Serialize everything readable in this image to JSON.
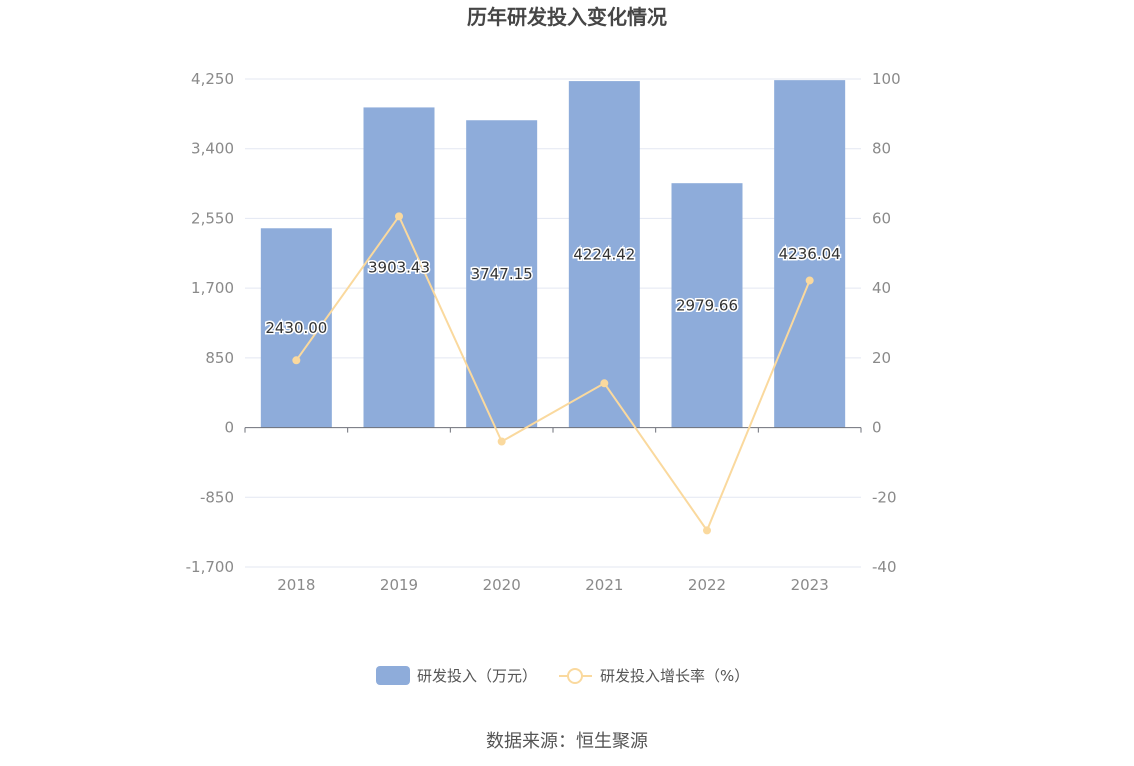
{
  "chart_data": {
    "type": "bar",
    "title": "历年研发投入变化情况",
    "categories": [
      "2018",
      "2019",
      "2020",
      "2021",
      "2022",
      "2023"
    ],
    "series": [
      {
        "name": "研发投入（万元）",
        "type": "bar",
        "axis": "left",
        "color": "#8eacda",
        "values": [
          2430.0,
          3903.43,
          3747.15,
          4224.42,
          2979.66,
          4236.04
        ],
        "labels": [
          "2430.00",
          "3903.43",
          "3747.15",
          "4224.42",
          "2979.66",
          "4236.04"
        ]
      },
      {
        "name": "研发投入增长率（%）",
        "type": "line",
        "axis": "right",
        "color": "#fad99e",
        "values": [
          19.3,
          60.6,
          -4.0,
          12.7,
          -29.5,
          42.2
        ]
      }
    ],
    "y_left": {
      "min": -1700,
      "max": 4250,
      "ticks": [
        4250,
        3400,
        2550,
        1700,
        850,
        0,
        -850,
        -1700
      ],
      "tick_labels": [
        "4,250",
        "3,400",
        "2,550",
        "1,700",
        "850",
        "0",
        "-850",
        "-1,700"
      ]
    },
    "y_right": {
      "min": -40,
      "max": 100,
      "ticks": [
        100,
        80,
        60,
        40,
        20,
        0,
        -20,
        -40
      ],
      "tick_labels": [
        "100",
        "80",
        "60",
        "40",
        "20",
        "0",
        "-20",
        "-40"
      ]
    },
    "grid": true,
    "legend_position": "bottom-center"
  },
  "source": "数据来源：恒生聚源"
}
